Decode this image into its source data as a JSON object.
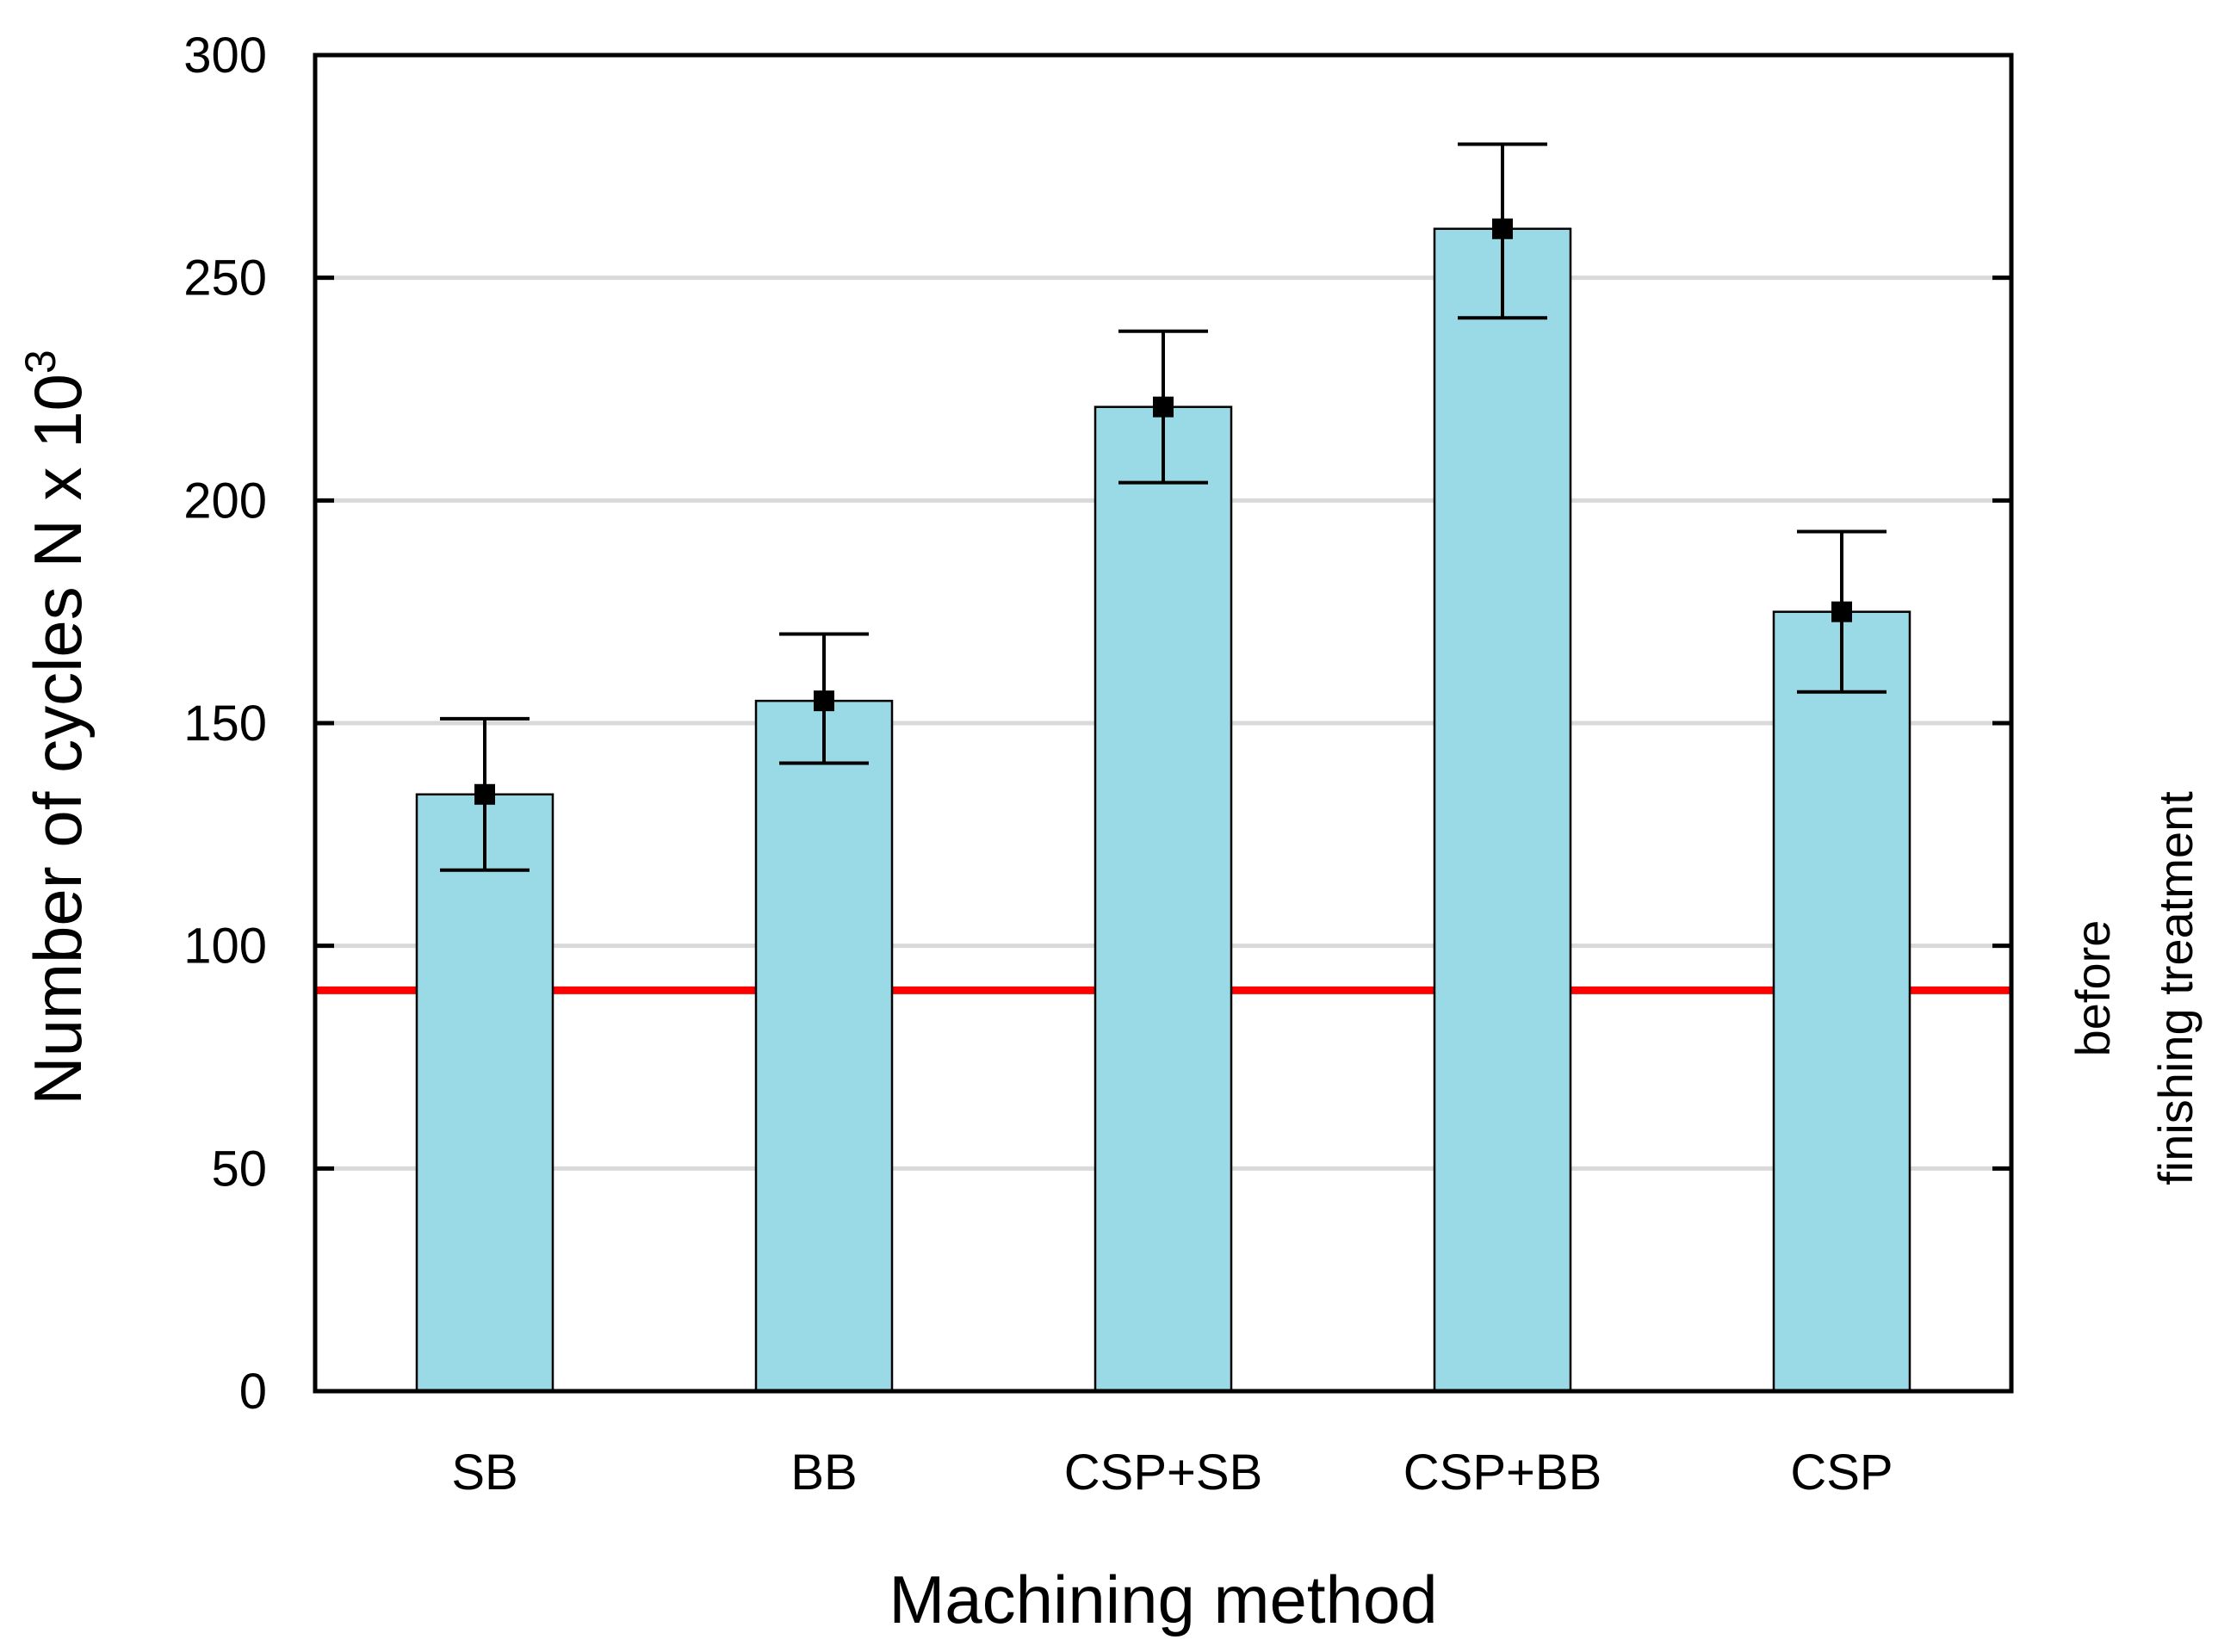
{
  "chart_data": {
    "type": "bar",
    "title": "",
    "xlabel": "Machining method",
    "ylabel": "Number of cycles N x 10",
    "ylabel_superscript": "3",
    "categories": [
      "SB",
      "BB",
      "CSP+SB",
      "CSP+BB",
      "CSP"
    ],
    "values": [
      134,
      155,
      221,
      261,
      175
    ],
    "error_low": [
      117,
      141,
      204,
      241,
      157
    ],
    "error_high": [
      151,
      170,
      238,
      280,
      193
    ],
    "ylim": [
      0,
      300
    ],
    "yticks": [
      0,
      50,
      100,
      150,
      200,
      250,
      300
    ],
    "grid": true,
    "reference_line": {
      "value": 90,
      "label_line1": "before",
      "label_line2": "finishing treatment",
      "color": "#ff0000"
    },
    "colors": {
      "bar_fill": "#9ad9e6",
      "bar_stroke": "#000000",
      "grid": "#d9d9d9",
      "marker": "#000000"
    }
  }
}
